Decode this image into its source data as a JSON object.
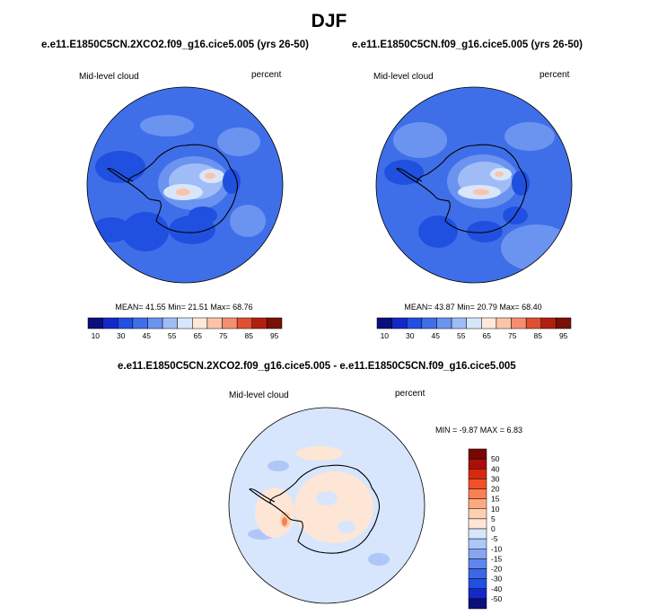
{
  "season": "DJF",
  "colors": {
    "abs_scale": [
      "#0a0f7a",
      "#1428c8",
      "#2050e0",
      "#3f6fe8",
      "#6b93f0",
      "#9fbcf6",
      "#d8e6fc",
      "#fde8da",
      "#fbc4a8",
      "#f58e70",
      "#e05030",
      "#b0200e",
      "#781008"
    ],
    "diff_scale": [
      "#0a0f7a",
      "#1428c8",
      "#2050e0",
      "#3c68e6",
      "#5f86ec",
      "#86a6f2",
      "#aec6f8",
      "#d7e6fc",
      "#fde6d6",
      "#fcd0b0",
      "#fbaa80",
      "#f88052",
      "#f25028",
      "#d62a10",
      "#a81008",
      "#780806"
    ],
    "land": "#ffffff",
    "coast": "#000000"
  },
  "chart_data": [
    {
      "type": "heatmap",
      "projection": "south-polar-stereographic",
      "title": "e.e11.E1850C5CN.2XCO2.f09_g16.cice5.005 (yrs 26-50)",
      "variable": "Mid-level cloud",
      "units": "percent",
      "stats": {
        "mean_label": "MEAN=",
        "mean": "41.55",
        "min_label": "Min=",
        "min": "21.51",
        "max_label": "Max=",
        "max": "68.76"
      },
      "colorbar_levels": [
        10,
        20,
        25,
        30,
        35,
        40,
        45,
        50,
        55,
        60,
        65,
        70,
        75,
        80,
        85,
        90,
        95
      ],
      "colorbar_ticks": [
        "10",
        "30",
        "45",
        "55",
        "65",
        "75",
        "85",
        "95"
      ]
    },
    {
      "type": "heatmap",
      "projection": "south-polar-stereographic",
      "title": "e.e11.E1850C5CN.f09_g16.cice5.005 (yrs 26-50)",
      "variable": "Mid-level cloud",
      "units": "percent",
      "stats": {
        "mean_label": "MEAN=",
        "mean": "43.87",
        "min_label": "Min=",
        "min": "20.79",
        "max_label": "Max=",
        "max": "68.40"
      },
      "colorbar_levels": [
        10,
        20,
        25,
        30,
        35,
        40,
        45,
        50,
        55,
        60,
        65,
        70,
        75,
        80,
        85,
        90,
        95
      ],
      "colorbar_ticks": [
        "10",
        "30",
        "45",
        "55",
        "65",
        "75",
        "85",
        "95"
      ]
    },
    {
      "type": "heatmap",
      "projection": "south-polar-stereographic",
      "title": "e.e11.E1850C5CN.2XCO2.f09_g16.cice5.005 - e.e11.E1850C5CN.f09_g16.cice5.005",
      "variable": "Mid-level cloud",
      "units": "percent",
      "stats": {
        "min_label": "MIN =",
        "min": "-9.87",
        "max_label": "MAX =",
        "max": "6.83"
      },
      "colorbar_levels": [
        50,
        40,
        30,
        20,
        15,
        10,
        5,
        0,
        -5,
        -10,
        -15,
        -20,
        -30,
        -40,
        -50
      ],
      "colorbar_ticks": [
        "50",
        "40",
        "30",
        "20",
        "15",
        "10",
        "5",
        "0",
        "-5",
        "-10",
        "-15",
        "-20",
        "-30",
        "-40",
        "-50"
      ]
    }
  ]
}
